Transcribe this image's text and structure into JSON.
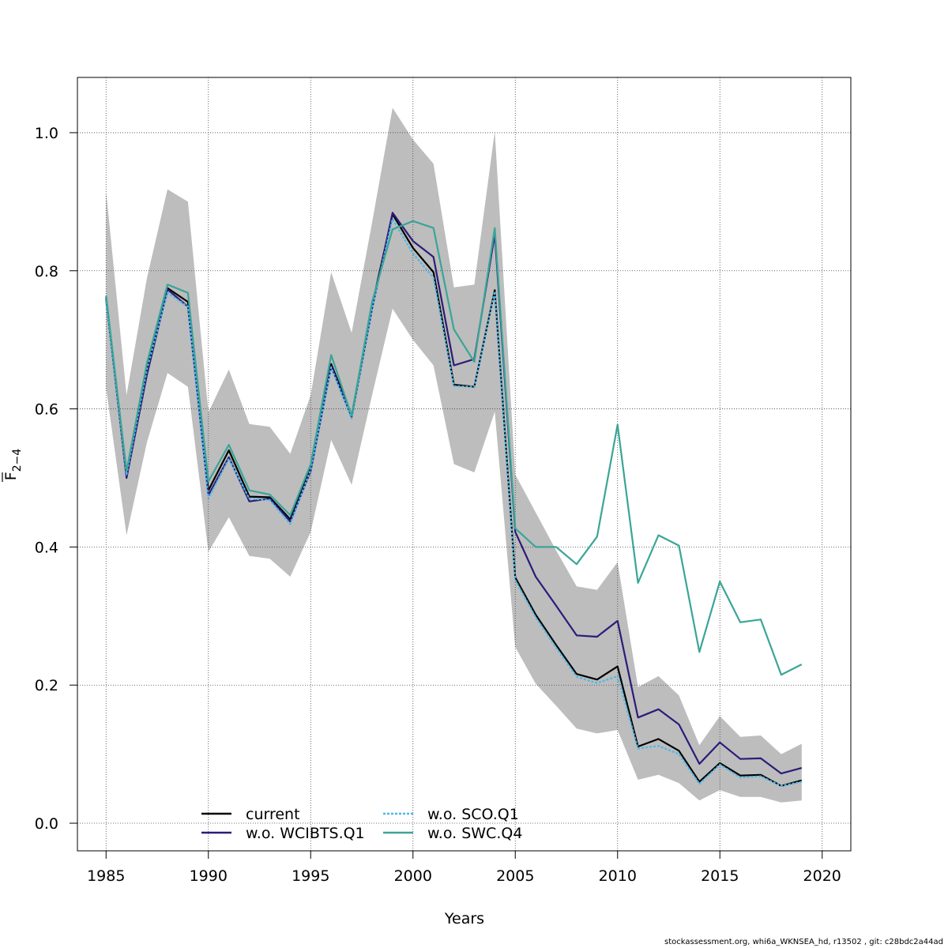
{
  "chart_data": {
    "type": "line",
    "xlabel": "Years",
    "ylabel": "F",
    "ylabel_subscript": "2−4",
    "xlim": [
      1983.6,
      2021.4
    ],
    "ylim": [
      -0.04,
      1.08
    ],
    "x_ticks": [
      1985,
      1990,
      1995,
      2000,
      2005,
      2010,
      2015,
      2020
    ],
    "y_ticks": [
      0.0,
      0.2,
      0.4,
      0.6,
      0.8,
      1.0
    ],
    "y_tick_labels": [
      "0.0",
      "0.2",
      "0.4",
      "0.6",
      "0.8",
      "1.0"
    ],
    "grid": true,
    "legend_position": "bottom-left",
    "years": [
      1985,
      1986,
      1987,
      1988,
      1989,
      1990,
      1991,
      1992,
      1993,
      1994,
      1995,
      1996,
      1997,
      1998,
      1999,
      2000,
      2001,
      2002,
      2003,
      2004,
      2005,
      2006,
      2007,
      2008,
      2009,
      2010,
      2011,
      2012,
      2013,
      2014,
      2015,
      2016,
      2017,
      2018,
      2019
    ],
    "band": {
      "upper": [
        0.915,
        0.62,
        0.79,
        0.918,
        0.9,
        0.595,
        0.657,
        0.578,
        0.574,
        0.535,
        0.62,
        0.798,
        0.71,
        0.87,
        1.036,
        0.99,
        0.955,
        0.776,
        0.78,
        1.002,
        0.505,
        0.45,
        0.395,
        0.343,
        0.338,
        0.378,
        0.197,
        0.213,
        0.185,
        0.113,
        0.155,
        0.125,
        0.127,
        0.1,
        0.115
      ],
      "lower": [
        0.63,
        0.417,
        0.552,
        0.652,
        0.632,
        0.393,
        0.443,
        0.387,
        0.383,
        0.357,
        0.422,
        0.555,
        0.49,
        0.62,
        0.745,
        0.7,
        0.663,
        0.52,
        0.508,
        0.596,
        0.255,
        0.202,
        0.17,
        0.137,
        0.13,
        0.135,
        0.063,
        0.07,
        0.058,
        0.033,
        0.048,
        0.038,
        0.038,
        0.03,
        0.033
      ]
    },
    "series": [
      {
        "name": "current",
        "color": "#000000",
        "dash": "",
        "values": [
          0.762,
          0.503,
          0.66,
          0.775,
          0.755,
          0.482,
          0.54,
          0.473,
          0.472,
          0.44,
          0.516,
          0.665,
          0.59,
          0.75,
          0.882,
          0.833,
          0.798,
          0.635,
          0.632,
          0.772,
          0.356,
          0.302,
          0.258,
          0.216,
          0.208,
          0.227,
          0.111,
          0.122,
          0.105,
          0.06,
          0.087,
          0.069,
          0.07,
          0.054,
          0.062
        ]
      },
      {
        "name": "w.o. WCIBTS.Q1",
        "color": "#2d1b7a",
        "dash": "",
        "values": [
          0.76,
          0.5,
          0.65,
          0.773,
          0.748,
          0.475,
          0.53,
          0.466,
          0.47,
          0.437,
          0.51,
          0.662,
          0.588,
          0.745,
          0.884,
          0.843,
          0.82,
          0.663,
          0.672,
          0.853,
          0.422,
          0.357,
          0.315,
          0.272,
          0.27,
          0.293,
          0.153,
          0.165,
          0.143,
          0.086,
          0.117,
          0.093,
          0.094,
          0.072,
          0.08
        ]
      },
      {
        "name": "w.o. SCO.Q1",
        "color": "#4db8e8",
        "dash": "3,2",
        "values": [
          0.755,
          0.505,
          0.658,
          0.768,
          0.748,
          0.47,
          0.528,
          0.47,
          0.468,
          0.433,
          0.512,
          0.66,
          0.586,
          0.745,
          0.875,
          0.825,
          0.79,
          0.633,
          0.632,
          0.77,
          0.352,
          0.298,
          0.254,
          0.212,
          0.203,
          0.213,
          0.108,
          0.112,
          0.1,
          0.057,
          0.085,
          0.066,
          0.068,
          0.054,
          0.06
        ]
      },
      {
        "name": "w.o. SWC.Q4",
        "color": "#3aa597",
        "dash": "",
        "values": [
          0.764,
          0.51,
          0.667,
          0.78,
          0.768,
          0.495,
          0.548,
          0.482,
          0.476,
          0.446,
          0.52,
          0.678,
          0.59,
          0.755,
          0.86,
          0.872,
          0.862,
          0.715,
          0.668,
          0.862,
          0.427,
          0.4,
          0.4,
          0.375,
          0.415,
          0.577,
          0.348,
          0.417,
          0.402,
          0.248,
          0.35,
          0.291,
          0.295,
          0.215,
          0.23
        ]
      }
    ]
  },
  "footer_text": "stockassessment.org, whi6a_WKNSEA_hd, r13502 , git: c28bdc2a44ad"
}
